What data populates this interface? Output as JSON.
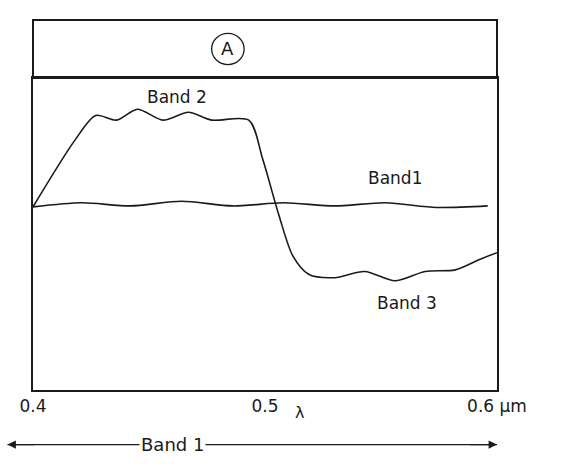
{
  "chart_data": {
    "type": "line",
    "panel_label": "A",
    "xlabel": "Band 1",
    "xlim": [
      0.4,
      0.6
    ],
    "xticks": [
      0.4,
      0.5,
      {
        "value": 0.6,
        "label": "0.6 μm"
      }
    ],
    "ylim": [
      0,
      10
    ],
    "tick_labels": "x",
    "grid": false,
    "series": [
      {
        "color": "#1a1a1a",
        "x": [
          0.4,
          0.421,
          0.442,
          0.464,
          0.486,
          0.508,
          0.53,
          0.552,
          0.574,
          0.596
        ],
        "values": [
          5.87,
          6.0,
          5.9,
          6.05,
          5.9,
          6.0,
          5.9,
          6.0,
          5.85,
          5.9
        ]
      },
      {
        "color": "#1a1a1a",
        "x": [
          0.4,
          0.418,
          0.427,
          0.436,
          0.445,
          0.456,
          0.467,
          0.477,
          0.493,
          0.499,
          0.506,
          0.512,
          0.519,
          0.53,
          0.543,
          0.556,
          0.569,
          0.582,
          0.593,
          0.6
        ],
        "values": [
          5.87,
          8.0,
          8.8,
          8.65,
          9.0,
          8.65,
          8.9,
          8.65,
          8.65,
          7.4,
          5.6,
          4.3,
          3.7,
          3.6,
          3.8,
          3.5,
          3.8,
          3.85,
          4.2,
          4.4
        ]
      }
    ],
    "annotations": [
      {
        "text": "Band 2",
        "x": 0.462,
        "y": 9.4
      },
      {
        "text": "Band1",
        "x": 0.556,
        "y": 6.8
      },
      {
        "text": "Band 3",
        "x": 0.561,
        "y": 2.8
      }
    ],
    "axis_annotations": [
      {
        "text": "λ",
        "x": 0.515
      }
    ]
  }
}
